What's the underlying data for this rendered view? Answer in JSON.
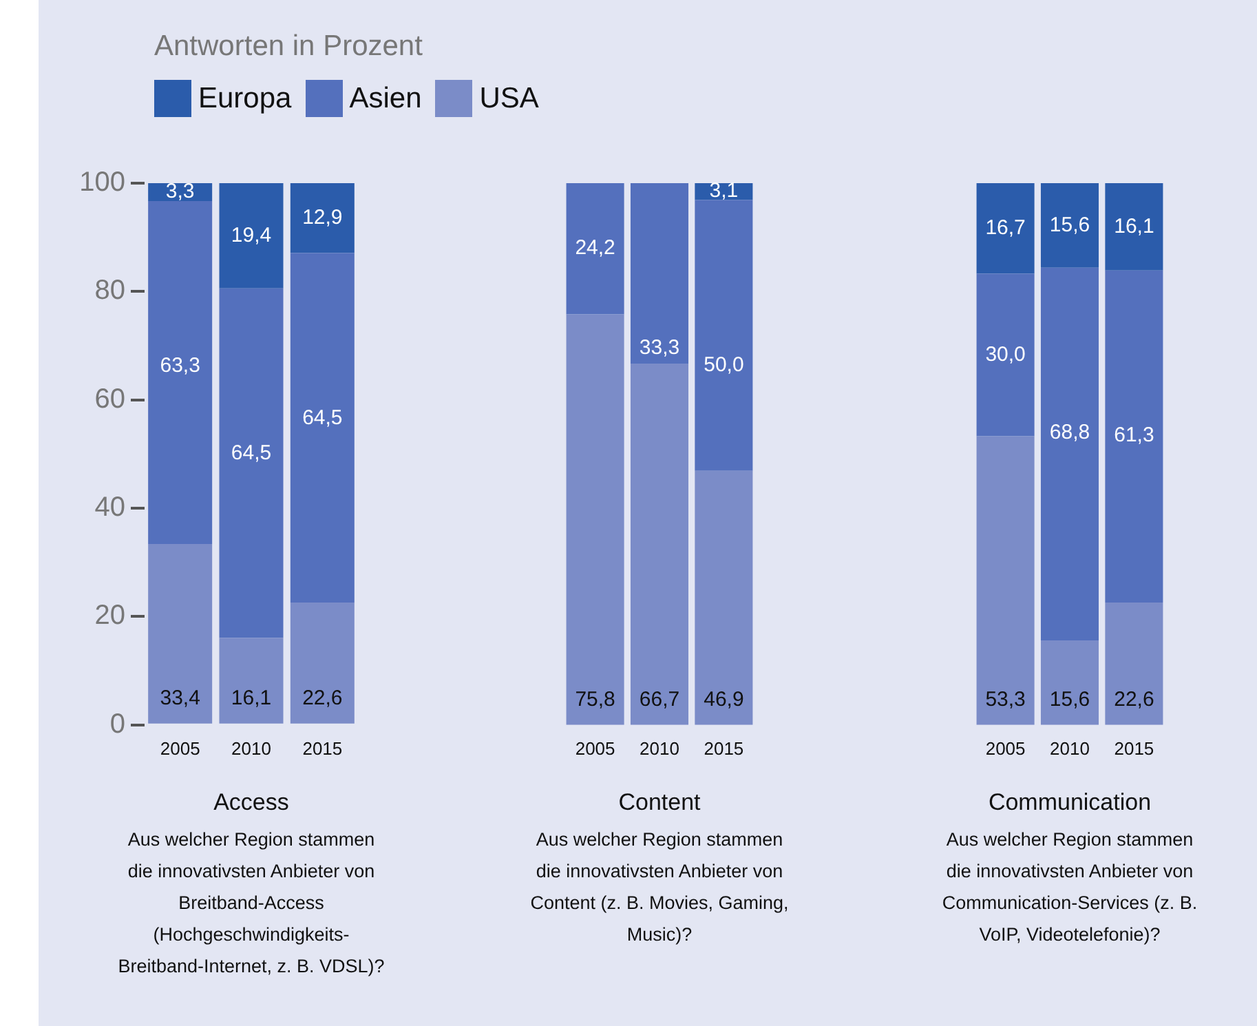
{
  "chart_data": [
    {
      "type": "bar",
      "stacked": true,
      "ylabel": "Antworten in Prozent",
      "legend": "top right",
      "grid": false,
      "ylim": [
        0,
        100
      ],
      "yticks": [
        0,
        20,
        40,
        60,
        80,
        100
      ],
      "xlabel": "Access",
      "annotations": [
        "Aus welcher Region stammen die innovativsten Anbieter von Breitband-Access (Hochgeschwindigkeits-Breitband-Internet, z. B. VDSL)?"
      ],
      "categories": [
        "2005",
        "2010",
        "2015"
      ],
      "series": [
        {
          "name": "USA",
          "color": "#7b8cc8",
          "values": [
            33.4,
            16.1,
            22.6
          ],
          "value_labels": [
            "33,4",
            "16,1",
            "22,6"
          ]
        },
        {
          "name": "Asien",
          "color": "#5470bd",
          "values": [
            63.3,
            64.5,
            64.5
          ],
          "value_labels": [
            "63,3",
            "64,5",
            "64,5"
          ]
        },
        {
          "name": "Europa",
          "color": "#2b5cab",
          "values": [
            3.3,
            19.4,
            12.9
          ],
          "value_labels": [
            "3,3",
            "19,4",
            "12,9"
          ]
        }
      ]
    },
    {
      "type": "bar",
      "stacked": true,
      "grid": false,
      "tick_labels": "x",
      "ylim": [
        0,
        100
      ],
      "yticks": [
        0,
        20,
        40,
        60,
        80,
        100
      ],
      "xlabel": "Content",
      "annotations": [
        "Aus welcher Region stammen die innovativsten Anbieter von Content (z. B. Movies, Gaming, Music)?"
      ],
      "categories": [
        "2005",
        "2010",
        "2015"
      ],
      "series": [
        {
          "color": "#7b8cc8",
          "values": [
            75.8,
            66.7,
            46.9
          ],
          "value_labels": [
            "75,8",
            "66,7",
            "46,9"
          ]
        },
        {
          "color": "#5470bd",
          "values": [
            24.2,
            33.3,
            50.0
          ],
          "value_labels": [
            "24,2",
            "33,3",
            "50,0"
          ]
        },
        {
          "color": "#2b5cab",
          "values": [
            null,
            null,
            3.1
          ],
          "value_labels": [
            null,
            null,
            "3,1"
          ]
        }
      ]
    },
    {
      "type": "bar",
      "stacked": true,
      "grid": false,
      "tick_labels": "x",
      "ylim": [
        0,
        100
      ],
      "yticks": [
        0,
        20,
        40,
        60,
        80,
        100
      ],
      "xlabel": "Communication",
      "annotations": [
        "Aus welcher Region stammen die innovativsten Anbieter von Communication-Services (z. B. VoIP, Videotelefonie)?"
      ],
      "categories": [
        "2005",
        "2010",
        "2015"
      ],
      "series": [
        {
          "color": "#7b8cc8",
          "values": [
            53.3,
            15.6,
            22.6
          ],
          "value_labels": [
            "53,3",
            "15,6",
            "22,6"
          ]
        },
        {
          "color": "#5470bd",
          "values": [
            30.0,
            68.8,
            61.3
          ],
          "value_labels": [
            "30,0",
            "68,8",
            "61,3"
          ]
        },
        {
          "color": "#2b5cab",
          "values": [
            16.7,
            15.6,
            16.1
          ],
          "value_labels": [
            "16,7",
            "15,6",
            "16,1"
          ]
        }
      ]
    }
  ]
}
